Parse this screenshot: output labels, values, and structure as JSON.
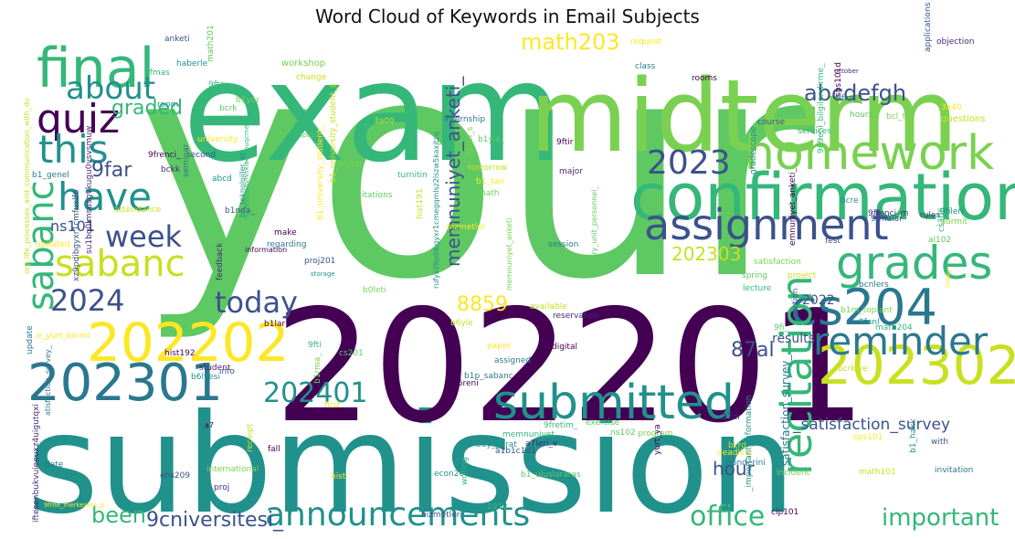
{
  "chart_data": {
    "type": "wordcloud",
    "title": "Word Cloud of Keywords in Email Subjects",
    "colormap": "viridis",
    "background": "#ffffff",
    "words": [
      {
        "text": "your",
        "weight": 1.0
      },
      {
        "text": "submission",
        "weight": 0.98
      },
      {
        "text": "202201",
        "weight": 0.9
      },
      {
        "text": "exam",
        "weight": 0.82
      },
      {
        "text": "midterm",
        "weight": 0.62
      },
      {
        "text": "confirmation",
        "weight": 0.48
      },
      {
        "text": "submitted",
        "weight": 0.42
      },
      {
        "text": "homework",
        "weight": 0.42
      },
      {
        "text": "assignment",
        "weight": 0.4
      },
      {
        "text": "202302",
        "weight": 0.4
      },
      {
        "text": "202301",
        "weight": 0.4
      },
      {
        "text": "202202",
        "weight": 0.38
      },
      {
        "text": "final",
        "weight": 0.36
      },
      {
        "text": "cs204",
        "weight": 0.36
      },
      {
        "text": "grades",
        "weight": 0.32
      },
      {
        "text": "reminder",
        "weight": 0.32
      },
      {
        "text": "recitation",
        "weight": 0.3
      },
      {
        "text": "announcements",
        "weight": 0.28
      },
      {
        "text": "sabanc",
        "weight": 0.28
      },
      {
        "text": "sabanc",
        "weight": 0.27
      },
      {
        "text": "quiz",
        "weight": 0.28
      },
      {
        "text": "have",
        "weight": 0.27
      },
      {
        "text": "this",
        "weight": 0.27
      },
      {
        "text": "about",
        "weight": 0.26
      },
      {
        "text": "today",
        "weight": 0.25
      },
      {
        "text": "2023",
        "weight": 0.24
      },
      {
        "text": "202401",
        "weight": 0.23
      },
      {
        "text": "week",
        "weight": 0.22
      },
      {
        "text": "office",
        "weight": 0.21
      },
      {
        "text": "2024",
        "weight": 0.21
      },
      {
        "text": "important",
        "weight": 0.19
      },
      {
        "text": "memnuniyet_anketi_",
        "weight": 0.17
      },
      {
        "text": "been",
        "weight": 0.17
      },
      {
        "text": "9cniversitesi_",
        "weight": 0.17
      },
      {
        "text": "abcdefgh",
        "weight": 0.17
      },
      {
        "text": "math203",
        "weight": 0.16
      },
      {
        "text": "202303",
        "weight": 0.16
      },
      {
        "text": "87al",
        "weight": 0.16
      },
      {
        "text": "graded",
        "weight": 0.15
      },
      {
        "text": "hour",
        "weight": 0.15
      },
      {
        "text": "8859",
        "weight": 0.15
      },
      {
        "text": "_satisfaction_survey",
        "weight": 0.13
      },
      {
        "text": "satisfaction_survey_",
        "weight": 0.1
      },
      {
        "text": "9far",
        "weight": 0.13
      },
      {
        "text": "ns101",
        "weight": 0.12
      },
      {
        "text": "2022",
        "weight": 0.11
      },
      {
        "text": "results",
        "weight": 0.11
      }
    ],
    "small_words": [
      "anketi",
      "haberle",
      "9fmas",
      "math201",
      "workshop",
      "change",
      "request",
      "class",
      "rooms",
      "objection",
      "applications",
      "room",
      "9ftay",
      "bcrk",
      "b1yor",
      "3a00",
      "university",
      "seminar",
      "9frenci_",
      "bckk",
      "second",
      "abcd",
      "survey",
      "b1yla_",
      "9fam_s",
      "tomorrow",
      "b1_tan",
      "internship",
      "9ftir",
      "major",
      "course",
      "gradescope",
      "services",
      "hours",
      "bcl_t",
      "questions",
      "3a40",
      "9fim_",
      "sps101d",
      "october",
      "b1nda_",
      "b1_teknolojiler_at",
      "turnitin",
      "recitations",
      "math",
      "hist191",
      "hizmetler",
      "session",
      "emnuniyet_anketi_",
      "rules",
      "fest",
      "9fileri",
      "cs306",
      "al102",
      "_dormit",
      "attendance",
      "updated",
      "regarding",
      "make",
      "feedback",
      "proj201",
      "storage",
      "lecture",
      "spring",
      "satisfaction",
      "project",
      "friday",
      "bcnlers",
      "b1lar",
      "su1bq0lmsusgvkugu0vsvsmuw",
      "xz9pdibgyxr1cmfuxlf6",
      "rufyxz9pdibgyxr1cmegqmlsz2lszw5kaxjtzq",
      "r8ocuiltnwgvfvsxibatsbuqcme",
      "if100",
      "b0leti",
      "b6yle",
      "paper",
      "assigned",
      "digital",
      "reservation",
      "section",
      "9fanl",
      "math204",
      "9fi_",
      "b1m_toplant",
      "available",
      "e_yurt_birimi",
      "update",
      "hist192",
      "student",
      "info",
      "b6lyesi",
      "9fti",
      "cs201",
      "b1rma_",
      "bcrkiye",
      "first",
      "b1p_sabanc",
      "b6reni",
      "27dr",
      "with",
      "b1_hakk",
      "9fretim_",
      "ns102",
      "program",
      "bcrd",
      "deadline",
      "b6nderini",
      "yurt_ya",
      "a7leri_v",
      "a1b1c1d1",
      "b6y_yarat",
      "memnuniyet",
      "exercise",
      "international",
      "receipt",
      "hist",
      "date",
      "fall",
      "proj",
      "ens209",
      "econ201",
      "writing",
      "b1_uluslararas",
      "incident",
      "math101",
      "sps101",
      "invitation",
      "cip101",
      "iftesenbukvuieeuxz4uigutqxi",
      "hizmetleri",
      "_important_information",
      "191y",
      "sps102",
      "b1nda",
      "b1_university_student_s",
      "b1_university_student_",
      "b1_genel",
      "information",
      "9frenci_m",
      "9fmalar",
      "bcre",
      "969enl_bilgilendirme_",
      "rmitory_unit_personnel_",
      "memnuniyet_anketi",
      "ory_life_processes_and_communication_with_do",
      "9fme_merkezine_g",
      "atisfaction_survey_",
      "a7"
    ]
  }
}
